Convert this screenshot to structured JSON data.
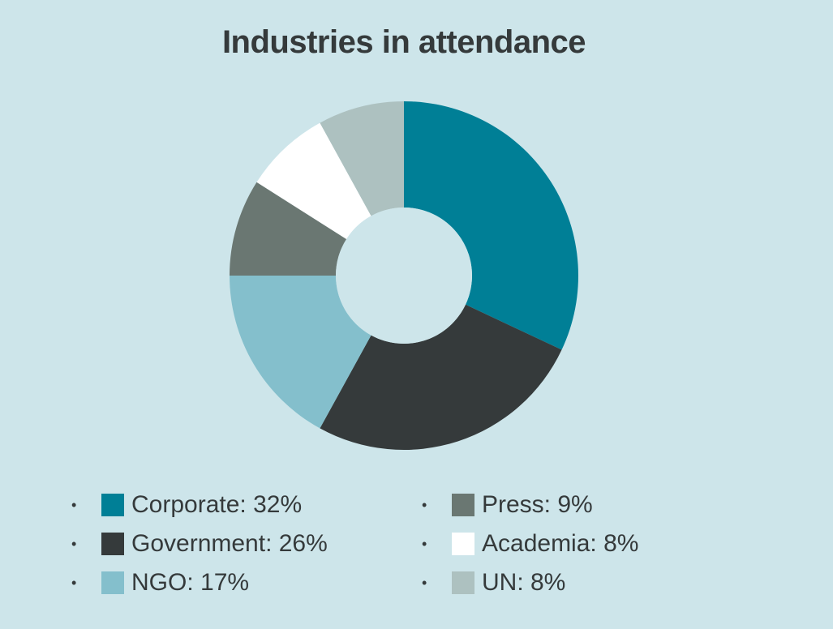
{
  "chart_data": {
    "type": "pie",
    "style": "donut",
    "title": "Industries in attendance",
    "categories": [
      "Corporate",
      "Government",
      "NGO",
      "Press",
      "Academia",
      "UN"
    ],
    "values": [
      32,
      26,
      17,
      9,
      8,
      8
    ],
    "unit": "%",
    "colors": [
      "#007f96",
      "#353a3b",
      "#84bfcc",
      "#6a7772",
      "#ffffff",
      "#adc1c0"
    ],
    "legend_position": "bottom",
    "legend": [
      {
        "label": "Corporate: 32%",
        "color": "#007f96"
      },
      {
        "label": "Press: 9%",
        "color": "#6a7772"
      },
      {
        "label": "Government: 26%",
        "color": "#353a3b"
      },
      {
        "label": "Academia: 8%",
        "color": "#ffffff"
      },
      {
        "label": "NGO: 17%",
        "color": "#84bfcc"
      },
      {
        "label": "UN: 8%",
        "color": "#adc1c0"
      }
    ]
  },
  "legend_bullet": "•",
  "background_color": "#cde5ea"
}
